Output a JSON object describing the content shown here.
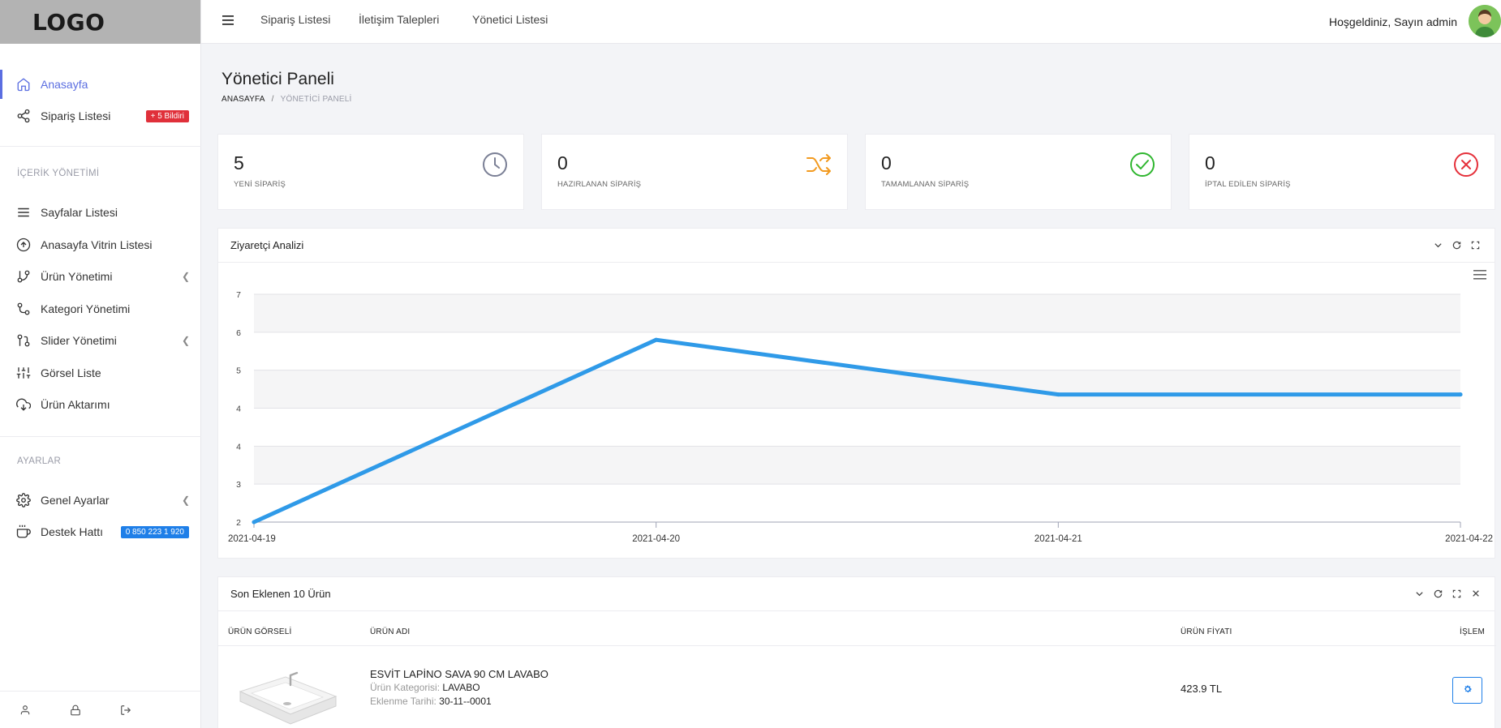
{
  "logo": "LOGO",
  "sidebar": {
    "items": [
      {
        "label": "Anasayfa",
        "icon": "home-icon"
      },
      {
        "label": "Sipariş Listesi",
        "icon": "share-icon",
        "badge": "+ 5 Bildiri"
      },
      {
        "label": "Sayfalar Listesi",
        "icon": "list-icon"
      },
      {
        "label": "Anasayfa Vitrin Listesi",
        "icon": "arrow-up-circle-icon"
      },
      {
        "label": "Ürün Yönetimi",
        "icon": "git-branch-icon"
      },
      {
        "label": "Kategori Yönetimi",
        "icon": "git-commit-icon"
      },
      {
        "label": "Slider Yönetimi",
        "icon": "git-pull-icon"
      },
      {
        "label": "Görsel Liste",
        "icon": "sliders-icon"
      },
      {
        "label": "Ürün Aktarımı",
        "icon": "cloud-download-icon"
      },
      {
        "label": "Genel Ayarlar",
        "icon": "gear-icon"
      },
      {
        "label": "Destek Hattı",
        "icon": "coffee-icon",
        "badge": "0 850 223 1 920"
      }
    ],
    "sections": {
      "content": "İÇERİK YÖNETİMİ",
      "settings": "AYARLAR"
    }
  },
  "topbar": {
    "links": [
      "Sipariş Listesi",
      "İletişim Talepleri",
      "Yönetici Listesi"
    ],
    "welcome": "Hoşgeldiniz, Sayın admin"
  },
  "page": {
    "title": "Yönetici Paneli",
    "breadcrumb": [
      "ANASAYFA",
      "YÖNETİCİ PANELİ"
    ]
  },
  "stats": [
    {
      "value": "5",
      "label": "YENİ SİPARİŞ",
      "icon": "clock-icon",
      "color": "#7a7f95"
    },
    {
      "value": "0",
      "label": "HAZIRLANAN SİPARİŞ",
      "icon": "shuffle-icon",
      "color": "#f29a1f"
    },
    {
      "value": "0",
      "label": "TAMAMLANAN SİPARİŞ",
      "icon": "check-circle-icon",
      "color": "#2fb62f"
    },
    {
      "value": "0",
      "label": "İPTAL EDİLEN SİPARİŞ",
      "icon": "x-circle-icon",
      "color": "#e5303a"
    }
  ],
  "visitor_panel": {
    "title": "Ziyaretçi Analizi"
  },
  "chart_data": {
    "type": "line",
    "title": "",
    "x": [
      "2021-04-19",
      "2021-04-20",
      "2021-04-21",
      "2021-04-22"
    ],
    "series": [
      {
        "values": [
          2,
          6,
          4.8,
          4.8
        ],
        "color": "#2f9ae8"
      }
    ],
    "y_tick_labels": [
      "2",
      "3",
      "4",
      "4",
      "5",
      "6",
      "7"
    ],
    "ylim": [
      2,
      7
    ],
    "grid": true,
    "legend": "none"
  },
  "products_panel": {
    "title": "Son Eklenen 10 Ürün",
    "columns": [
      "ÜRÜN GÖRSELİ",
      "ÜRÜN ADI",
      "ÜRÜN FİYATI",
      "İŞLEM"
    ],
    "rows": [
      {
        "name": "ESVİT LAPİNO SAVA 90 CM LAVABO",
        "category_label": "Ürün Kategorisi:",
        "category": "LAVABO",
        "date_label": "Eklenme Tarihi:",
        "date": "30-11--0001",
        "price": "423.9 TL"
      }
    ]
  }
}
